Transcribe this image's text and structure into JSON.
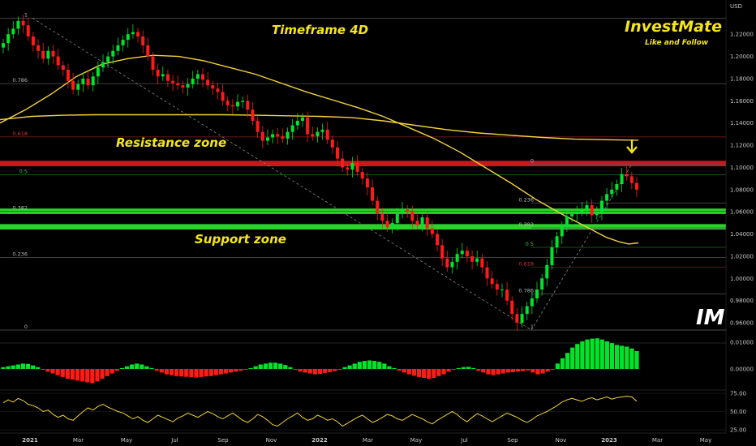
{
  "chart_data": {
    "type": "candlestick",
    "currency": "USD",
    "title": "Timeframe 4D",
    "brand": {
      "name": "InvestMate",
      "tagline": "Like and Follow",
      "logo_text": "IM"
    },
    "annotations": {
      "resistance": "Resistance zone",
      "support": "Support zone"
    },
    "colors": {
      "up": "#00e52b",
      "down": "#ff1a1a",
      "ma": "#f3d33c",
      "resistance": "#c8181c",
      "support": "#2ad22a",
      "annotation": "#f5e61a"
    },
    "price_axis": {
      "range": [
        0.944,
        1.245
      ],
      "ticks": [
        "1.22000",
        "1.20000",
        "1.18000",
        "1.16000",
        "1.14000",
        "1.12000",
        "1.10000",
        "1.08000",
        "1.06000",
        "1.04000",
        "1.02000",
        "1.00000",
        "0.98000",
        "0.96000"
      ]
    },
    "time_axis": {
      "ticks": [
        "2021",
        "Mar",
        "May",
        "Jul",
        "Sep",
        "Nov",
        "2022",
        "Mar",
        "May",
        "Jul",
        "Sep",
        "Nov",
        "2023",
        "Mar",
        "May"
      ],
      "bold": [
        "2021",
        "2022",
        "2023"
      ]
    },
    "resistance_zone": [
      1.1025,
      1.1045
    ],
    "support_zones": [
      [
        1.0595,
        1.0615
      ],
      [
        1.0455,
        1.0475
      ]
    ],
    "fib_primary": {
      "levels": [
        {
          "label": "1",
          "price": 1.2345
        },
        {
          "label": "0.786",
          "price": 1.1755
        },
        {
          "label": "0.618",
          "price": 1.1275
        },
        {
          "label": "0.5",
          "price": 1.0935
        },
        {
          "label": "0.382",
          "price": 1.0605
        },
        {
          "label": "0.236",
          "price": 1.019
        },
        {
          "label": "0",
          "price": 0.9535
        }
      ]
    },
    "fib_secondary": {
      "levels": [
        {
          "label": "0",
          "price": 1.103
        },
        {
          "label": "0.236",
          "price": 1.068
        },
        {
          "label": "0.382",
          "price": 1.0455
        },
        {
          "label": "0.5",
          "price": 1.028
        },
        {
          "label": "0.618",
          "price": 1.01
        },
        {
          "label": "0.786",
          "price": 0.986
        },
        {
          "label": "1",
          "price": 0.9535
        }
      ]
    },
    "close_series": [
      1.212,
      1.22,
      1.225,
      1.232,
      1.228,
      1.218,
      1.21,
      1.205,
      1.198,
      1.205,
      1.2,
      1.192,
      1.188,
      1.178,
      1.17,
      1.175,
      1.18,
      1.174,
      1.182,
      1.19,
      1.195,
      1.2,
      1.205,
      1.21,
      1.215,
      1.22,
      1.222,
      1.218,
      1.21,
      1.2,
      1.188,
      1.182,
      1.184,
      1.178,
      1.176,
      1.174,
      1.172,
      1.175,
      1.18,
      1.184,
      1.179,
      1.174,
      1.171,
      1.168,
      1.16,
      1.156,
      1.155,
      1.159,
      1.16,
      1.152,
      1.142,
      1.132,
      1.124,
      1.127,
      1.13,
      1.128,
      1.126,
      1.132,
      1.138,
      1.142,
      1.145,
      1.13,
      1.128,
      1.132,
      1.134,
      1.125,
      1.118,
      1.108,
      1.1,
      1.098,
      1.104,
      1.096,
      1.09,
      1.082,
      1.07,
      1.058,
      1.052,
      1.046,
      1.05,
      1.058,
      1.062,
      1.06,
      1.052,
      1.048,
      1.055,
      1.045,
      1.04,
      1.03,
      1.018,
      1.01,
      1.015,
      1.022,
      1.025,
      1.02,
      1.015,
      1.018,
      1.01,
      1.0,
      0.995,
      0.99,
      0.99,
      0.98,
      0.968,
      0.96,
      0.968,
      0.975,
      0.982,
      0.99,
      1.0,
      1.012,
      1.028,
      1.038,
      1.046,
      1.056,
      1.058,
      1.06,
      1.062,
      1.066,
      1.057,
      1.058,
      1.07,
      1.076,
      1.08,
      1.085,
      1.094,
      1.092,
      1.086,
      1.08
    ],
    "ma_slow": [
      [
        0.0,
        1.143
      ],
      [
        0.05,
        1.146
      ],
      [
        0.1,
        1.147
      ],
      [
        0.15,
        1.1475
      ],
      [
        0.2,
        1.1475
      ],
      [
        0.25,
        1.1475
      ],
      [
        0.3,
        1.1475
      ],
      [
        0.35,
        1.1475
      ],
      [
        0.4,
        1.147
      ],
      [
        0.45,
        1.1465
      ],
      [
        0.5,
        1.146
      ],
      [
        0.55,
        1.145
      ],
      [
        0.6,
        1.142
      ],
      [
        0.65,
        1.138
      ],
      [
        0.7,
        1.134
      ],
      [
        0.75,
        1.131
      ],
      [
        0.8,
        1.129
      ],
      [
        0.85,
        1.127
      ],
      [
        0.9,
        1.1255
      ],
      [
        0.95,
        1.125
      ],
      [
        1.0,
        1.1245
      ]
    ],
    "ma_fast": [
      [
        0.0,
        1.14
      ],
      [
        0.04,
        1.152
      ],
      [
        0.08,
        1.166
      ],
      [
        0.12,
        1.182
      ],
      [
        0.16,
        1.193
      ],
      [
        0.2,
        1.198
      ],
      [
        0.24,
        1.201
      ],
      [
        0.28,
        1.2
      ],
      [
        0.32,
        1.196
      ],
      [
        0.36,
        1.19
      ],
      [
        0.4,
        1.184
      ],
      [
        0.44,
        1.176
      ],
      [
        0.48,
        1.168
      ],
      [
        0.52,
        1.161
      ],
      [
        0.56,
        1.154
      ],
      [
        0.6,
        1.146
      ],
      [
        0.64,
        1.136
      ],
      [
        0.68,
        1.126
      ],
      [
        0.72,
        1.114
      ],
      [
        0.76,
        1.1
      ],
      [
        0.8,
        1.086
      ],
      [
        0.84,
        1.071
      ],
      [
        0.88,
        1.058
      ],
      [
        0.92,
        1.046
      ],
      [
        0.95,
        1.037
      ],
      [
        0.97,
        1.033
      ],
      [
        0.985,
        1.031
      ],
      [
        1.0,
        1.032
      ]
    ],
    "momentum_axis": {
      "ticks": [
        "0.01000",
        "0.00000"
      ]
    },
    "momentum": [
      0.1,
      0.15,
      0.2,
      0.25,
      0.3,
      0.28,
      0.2,
      0.1,
      -0.05,
      -0.15,
      -0.25,
      -0.35,
      -0.45,
      -0.55,
      -0.6,
      -0.65,
      -0.7,
      -0.75,
      -0.8,
      -0.7,
      -0.55,
      -0.4,
      -0.25,
      -0.1,
      0.05,
      0.15,
      0.25,
      0.3,
      0.25,
      0.15,
      0.05,
      -0.1,
      -0.2,
      -0.3,
      -0.35,
      -0.4,
      -0.42,
      -0.44,
      -0.46,
      -0.48,
      -0.45,
      -0.42,
      -0.4,
      -0.35,
      -0.3,
      -0.25,
      -0.2,
      -0.15,
      -0.1,
      -0.05,
      0.05,
      0.15,
      0.25,
      0.3,
      0.35,
      0.35,
      0.3,
      0.22,
      0.1,
      -0.05,
      -0.15,
      -0.2,
      -0.25,
      -0.3,
      -0.28,
      -0.22,
      -0.18,
      -0.12,
      -0.05,
      0.1,
      0.2,
      0.3,
      0.4,
      0.45,
      0.48,
      0.45,
      0.4,
      0.3,
      0.15,
      0.05,
      -0.1,
      -0.2,
      -0.3,
      -0.38,
      -0.45,
      -0.5,
      -0.55,
      -0.5,
      -0.4,
      -0.3,
      -0.15,
      -0.05,
      0.05,
      0.1,
      0.12,
      0.05,
      -0.1,
      -0.2,
      -0.3,
      -0.35,
      -0.3,
      -0.25,
      -0.2,
      -0.18,
      -0.15,
      -0.12,
      -0.08,
      -0.2,
      -0.3,
      -0.25,
      -0.15,
      -0.05,
      0.3,
      0.6,
      0.9,
      1.2,
      1.4,
      1.55,
      1.65,
      1.7,
      1.72,
      1.65,
      1.55,
      1.45,
      1.35,
      1.3,
      1.25,
      1.15,
      1.0
    ],
    "oscillator_axis": {
      "ticks": [
        "75.00",
        "50.00",
        "25.00"
      ]
    },
    "oscillator": [
      62,
      66,
      63,
      68,
      65,
      60,
      58,
      55,
      50,
      52,
      46,
      42,
      45,
      40,
      38,
      44,
      50,
      55,
      52,
      57,
      60,
      56,
      53,
      50,
      48,
      44,
      40,
      43,
      38,
      35,
      40,
      45,
      42,
      39,
      36,
      41,
      44,
      48,
      45,
      42,
      46,
      50,
      47,
      43,
      40,
      44,
      48,
      43,
      38,
      35,
      40,
      46,
      43,
      38,
      32,
      30,
      35,
      40,
      44,
      48,
      42,
      38,
      40,
      45,
      42,
      38,
      40,
      36,
      30,
      34,
      38,
      42,
      45,
      40,
      35,
      38,
      42,
      46,
      44,
      40,
      38,
      42,
      46,
      43,
      40,
      36,
      33,
      38,
      42,
      46,
      50,
      46,
      40,
      36,
      42,
      47,
      44,
      40,
      36,
      40,
      44,
      48,
      45,
      42,
      38,
      35,
      39,
      44,
      47,
      50,
      54,
      58,
      63,
      66,
      68,
      66,
      64,
      67,
      69,
      66,
      68,
      70,
      67,
      69,
      70,
      71,
      70,
      64
    ]
  }
}
